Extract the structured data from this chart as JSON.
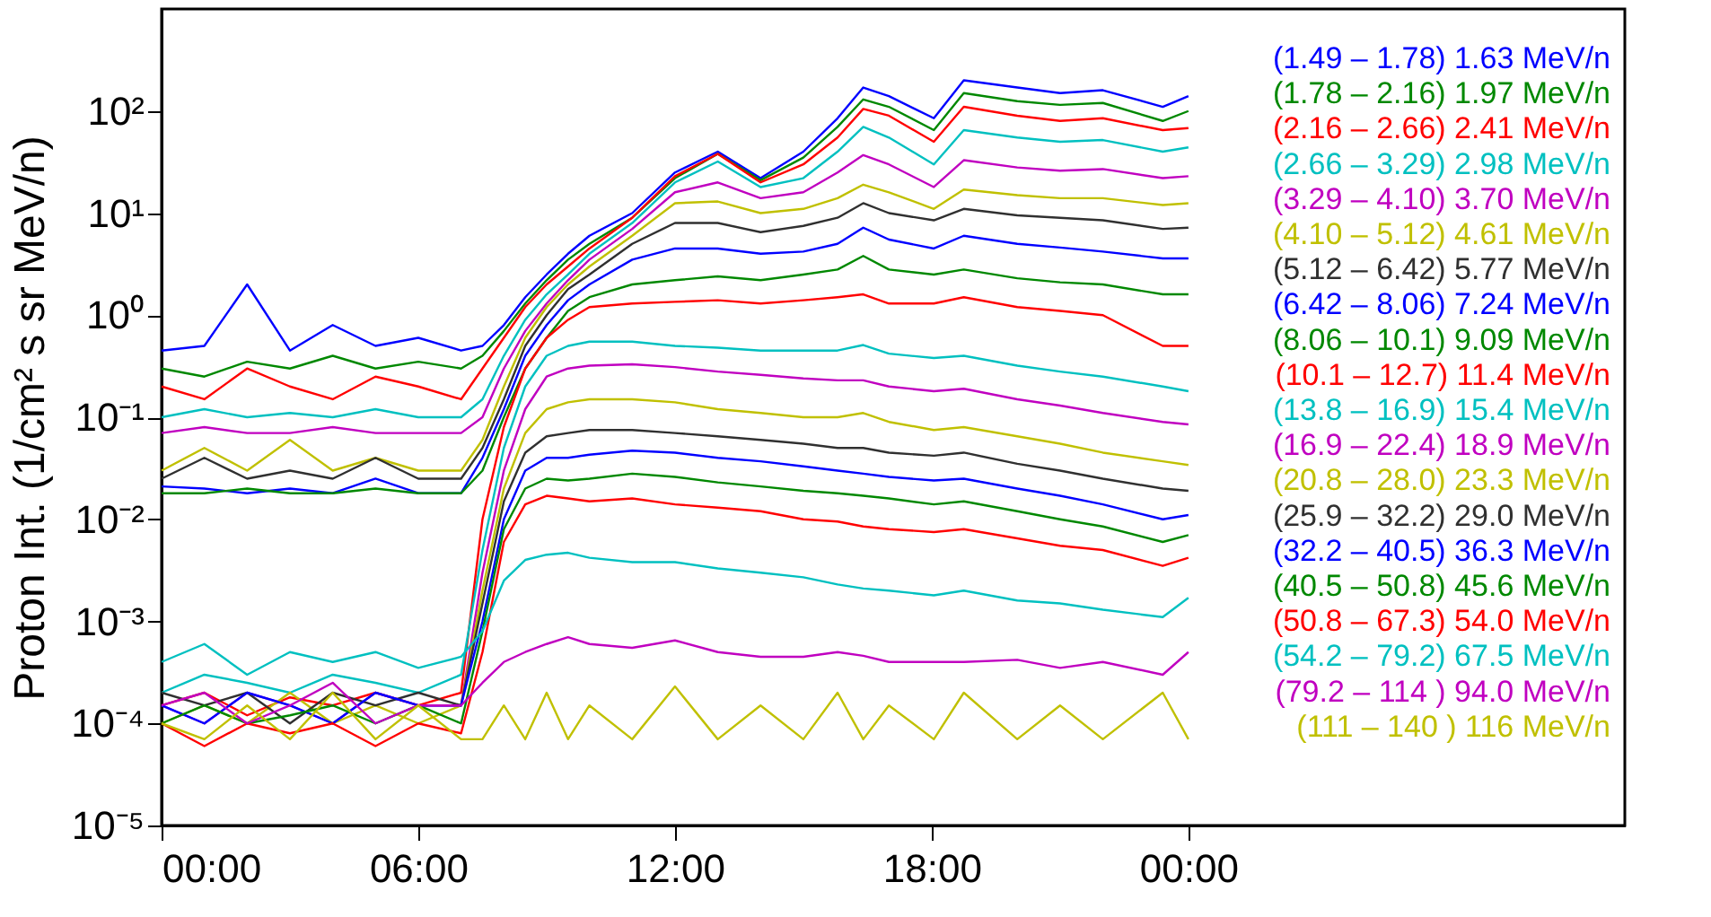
{
  "chart_data": {
    "type": "line",
    "ylabel": "Proton Int. (1/cm² s sr MeV/n)",
    "log": "y",
    "legend": "right",
    "grid": false,
    "x": [
      0,
      1,
      2,
      3,
      4,
      5,
      6,
      7,
      7.5,
      8,
      8.5,
      9,
      9.5,
      10,
      11,
      12,
      13,
      14,
      15,
      15.8,
      16.4,
      17,
      18.05,
      18.75,
      20,
      21,
      22,
      23.4,
      24
    ],
    "xlim": [
      0,
      34.2
    ],
    "xticks": [
      {
        "value": 0,
        "label": "00:00"
      },
      {
        "value": 6,
        "label": "06:00"
      },
      {
        "value": 12,
        "label": "12:00"
      },
      {
        "value": 18,
        "label": "18:00"
      },
      {
        "value": 24,
        "label": "00:00"
      }
    ],
    "ylim": [
      1e-05,
      1000
    ],
    "yticks": [
      {
        "value": 1e-05,
        "label": "10⁻⁵"
      },
      {
        "value": 0.0001,
        "label": "10⁻⁴"
      },
      {
        "value": 0.001,
        "label": "10⁻³"
      },
      {
        "value": 0.01,
        "label": "10⁻²"
      },
      {
        "value": 0.1,
        "label": "10⁻¹"
      },
      {
        "value": 1,
        "label": "10⁰"
      },
      {
        "value": 10,
        "label": "10¹"
      },
      {
        "value": 100,
        "label": "10²"
      }
    ],
    "series": [
      {
        "name": "(1.49 – 1.78) 1.63 MeV/n",
        "color": "#0000ff",
        "values": [
          0.45,
          0.5,
          2.0,
          0.45,
          0.8,
          0.5,
          0.6,
          0.45,
          0.5,
          0.8,
          1.5,
          2.5,
          4,
          6,
          10,
          25,
          40,
          22,
          40,
          85,
          170,
          140,
          85,
          200,
          170,
          150,
          160,
          110,
          140
        ]
      },
      {
        "name": "(1.78 – 2.16) 1.97 MeV/n",
        "color": "#008800",
        "values": [
          0.3,
          0.25,
          0.35,
          0.3,
          0.4,
          0.3,
          0.35,
          0.3,
          0.4,
          0.7,
          1.3,
          2.2,
          3.5,
          5,
          9,
          22,
          38,
          21,
          35,
          70,
          130,
          110,
          65,
          150,
          125,
          115,
          120,
          80,
          100
        ]
      },
      {
        "name": "(2.16 – 2.66) 2.41 MeV/n",
        "color": "#ff0000",
        "values": [
          0.2,
          0.15,
          0.3,
          0.2,
          0.15,
          0.25,
          0.2,
          0.15,
          0.3,
          0.6,
          1.2,
          2,
          3,
          4.5,
          9,
          23,
          38,
          20,
          30,
          55,
          105,
          90,
          50,
          110,
          90,
          80,
          85,
          65,
          68
        ]
      },
      {
        "name": "(2.66 – 3.29) 2.98 MeV/n",
        "color": "#00c0c0",
        "values": [
          0.1,
          0.12,
          0.1,
          0.11,
          0.1,
          0.12,
          0.1,
          0.1,
          0.15,
          0.4,
          0.9,
          1.6,
          2.5,
          4,
          8,
          20,
          32,
          18,
          22,
          40,
          70,
          55,
          30,
          65,
          55,
          50,
          52,
          40,
          44
        ]
      },
      {
        "name": "(3.29 – 4.10) 3.70 MeV/n",
        "color": "#c000c0",
        "values": [
          0.07,
          0.08,
          0.07,
          0.07,
          0.08,
          0.07,
          0.07,
          0.07,
          0.1,
          0.3,
          0.7,
          1.3,
          2.2,
          3.5,
          7,
          16,
          20,
          14,
          16,
          25,
          37,
          30,
          18,
          33,
          28,
          26,
          27,
          22,
          23
        ]
      },
      {
        "name": "(4.10 – 5.12) 4.61 MeV/n",
        "color": "#c0c000",
        "values": [
          0.03,
          0.05,
          0.03,
          0.06,
          0.03,
          0.04,
          0.03,
          0.03,
          0.06,
          0.2,
          0.6,
          1.2,
          2,
          3,
          6,
          12.5,
          13,
          10,
          11,
          14,
          19,
          16,
          11,
          17,
          15,
          14,
          14,
          12,
          12.5
        ]
      },
      {
        "name": "(5.12 – 6.42) 5.77 MeV/n",
        "color": "#303030",
        "values": [
          0.025,
          0.04,
          0.025,
          0.03,
          0.025,
          0.04,
          0.025,
          0.025,
          0.05,
          0.15,
          0.5,
          1,
          1.8,
          2.5,
          5,
          8,
          8,
          6.5,
          7.5,
          9,
          12.5,
          10,
          8.5,
          11,
          9.5,
          9,
          8.5,
          7,
          7.2
        ]
      },
      {
        "name": "(6.42 – 8.06) 7.24 MeV/n",
        "color": "#0000ff",
        "values": [
          0.021,
          0.02,
          0.018,
          0.02,
          0.018,
          0.025,
          0.018,
          0.018,
          0.04,
          0.12,
          0.4,
          0.8,
          1.4,
          2,
          3.5,
          4.5,
          4.5,
          4,
          4.2,
          5,
          7.2,
          5.5,
          4.5,
          6,
          5,
          4.6,
          4.2,
          3.6,
          3.6
        ]
      },
      {
        "name": "(8.06 – 10.1) 9.09 MeV/n",
        "color": "#008800",
        "values": [
          0.018,
          0.018,
          0.02,
          0.018,
          0.018,
          0.02,
          0.018,
          0.018,
          0.03,
          0.1,
          0.3,
          0.6,
          1.1,
          1.5,
          2,
          2.2,
          2.4,
          2.2,
          2.5,
          2.8,
          3.8,
          2.8,
          2.5,
          2.8,
          2.3,
          2.1,
          2,
          1.6,
          1.6
        ]
      },
      {
        "name": "(10.1 – 12.7) 11.4 MeV/n",
        "color": "#ff0000",
        "values": [
          0.00015,
          0.0002,
          0.00012,
          0.00018,
          0.00015,
          0.0002,
          0.00015,
          0.0002,
          0.01,
          0.08,
          0.3,
          0.6,
          0.9,
          1.2,
          1.3,
          1.35,
          1.4,
          1.3,
          1.4,
          1.5,
          1.6,
          1.3,
          1.3,
          1.5,
          1.2,
          1.1,
          1,
          0.5,
          0.5
        ]
      },
      {
        "name": "(13.8 – 16.9) 15.4 MeV/n",
        "color": "#00c0c0",
        "values": [
          0.0002,
          0.0003,
          0.00025,
          0.0002,
          0.0003,
          0.00025,
          0.0002,
          0.0003,
          0.005,
          0.05,
          0.2,
          0.4,
          0.5,
          0.55,
          0.55,
          0.5,
          0.48,
          0.45,
          0.45,
          0.45,
          0.51,
          0.42,
          0.38,
          0.4,
          0.32,
          0.28,
          0.25,
          0.2,
          0.18
        ]
      },
      {
        "name": "(16.9 – 22.4) 18.9 MeV/n",
        "color": "#c000c0",
        "values": [
          0.00015,
          0.0001,
          0.0002,
          0.00015,
          0.0001,
          0.0002,
          0.00015,
          0.00015,
          0.003,
          0.03,
          0.12,
          0.25,
          0.3,
          0.32,
          0.33,
          0.31,
          0.28,
          0.26,
          0.24,
          0.23,
          0.23,
          0.2,
          0.18,
          0.19,
          0.15,
          0.13,
          0.11,
          0.09,
          0.085
        ]
      },
      {
        "name": "(20.8 – 28.0) 23.3 MeV/n",
        "color": "#c0c000",
        "values": [
          0.0001,
          0.00015,
          0.0001,
          0.0002,
          0.0001,
          0.00015,
          0.0001,
          0.00015,
          0.002,
          0.02,
          0.07,
          0.12,
          0.14,
          0.15,
          0.15,
          0.14,
          0.12,
          0.11,
          0.1,
          0.1,
          0.11,
          0.09,
          0.075,
          0.08,
          0.065,
          0.055,
          0.045,
          0.037,
          0.034
        ]
      },
      {
        "name": "(25.9 – 32.2) 29.0 MeV/n",
        "color": "#303030",
        "values": [
          0.0002,
          0.00015,
          0.0002,
          0.0001,
          0.0002,
          0.00015,
          0.0002,
          0.00015,
          0.0015,
          0.015,
          0.045,
          0.065,
          0.07,
          0.075,
          0.075,
          0.07,
          0.065,
          0.06,
          0.055,
          0.05,
          0.05,
          0.045,
          0.042,
          0.045,
          0.035,
          0.03,
          0.025,
          0.02,
          0.019
        ]
      },
      {
        "name": "(32.2 – 40.5) 36.3 MeV/n",
        "color": "#0000ff",
        "values": [
          0.00015,
          0.0001,
          0.0002,
          0.00015,
          0.0001,
          0.0002,
          0.00015,
          0.00015,
          0.001,
          0.01,
          0.03,
          0.04,
          0.04,
          0.043,
          0.047,
          0.045,
          0.04,
          0.037,
          0.033,
          0.03,
          0.028,
          0.026,
          0.024,
          0.025,
          0.02,
          0.017,
          0.014,
          0.01,
          0.011
        ]
      },
      {
        "name": "(40.5 – 50.8) 45.6 MeV/n",
        "color": "#008800",
        "values": [
          0.0001,
          0.00015,
          0.0001,
          0.00012,
          0.00015,
          0.0001,
          0.00015,
          0.0001,
          0.0008,
          0.008,
          0.02,
          0.025,
          0.024,
          0.025,
          0.028,
          0.026,
          0.023,
          0.021,
          0.019,
          0.018,
          0.017,
          0.016,
          0.014,
          0.015,
          0.012,
          0.01,
          0.0085,
          0.006,
          0.007
        ]
      },
      {
        "name": "(50.8 – 67.3) 54.0 MeV/n",
        "color": "#ff0000",
        "values": [
          0.0001,
          6e-05,
          0.0001,
          8e-05,
          0.0001,
          6e-05,
          0.0001,
          8e-05,
          0.0005,
          0.006,
          0.014,
          0.017,
          0.016,
          0.015,
          0.016,
          0.014,
          0.013,
          0.012,
          0.01,
          0.0095,
          0.0085,
          0.008,
          0.0075,
          0.008,
          0.0065,
          0.0055,
          0.005,
          0.0035,
          0.0042
        ]
      },
      {
        "name": "(54.2 – 79.2) 67.5 MeV/n",
        "color": "#00c0c0",
        "values": [
          0.0004,
          0.0006,
          0.0003,
          0.0005,
          0.0004,
          0.0005,
          0.00035,
          0.00045,
          0.0008,
          0.0025,
          0.004,
          0.0045,
          0.0047,
          0.0042,
          0.0038,
          0.0038,
          0.0033,
          0.003,
          0.0027,
          0.0023,
          0.0021,
          0.002,
          0.0018,
          0.002,
          0.0016,
          0.0015,
          0.0013,
          0.0011,
          0.0017
        ]
      },
      {
        "name": "(79.2 – 114 ) 94.0 MeV/n",
        "color": "#c000c0",
        "values": [
          0.00015,
          0.0002,
          0.0001,
          0.00015,
          0.00025,
          0.0001,
          0.00015,
          0.00015,
          0.00025,
          0.0004,
          0.0005,
          0.0006,
          0.0007,
          0.0006,
          0.00055,
          0.00065,
          0.0005,
          0.00045,
          0.00045,
          0.0005,
          0.00046,
          0.0004,
          0.0004,
          0.0004,
          0.00042,
          0.00035,
          0.0004,
          0.0003,
          0.0005
        ]
      },
      {
        "name": "(111  – 140 ) 116 MeV/n",
        "color": "#c0c000",
        "values": [
          0.0001,
          7e-05,
          0.00015,
          7e-05,
          0.0002,
          7e-05,
          0.00015,
          7e-05,
          7e-05,
          0.00015,
          7e-05,
          0.0002,
          7e-05,
          0.00015,
          7e-05,
          0.00023,
          7e-05,
          0.00015,
          7e-05,
          0.0002,
          7e-05,
          0.00015,
          7e-05,
          0.0002,
          7e-05,
          0.00015,
          7e-05,
          0.0002,
          7e-05
        ]
      }
    ]
  }
}
